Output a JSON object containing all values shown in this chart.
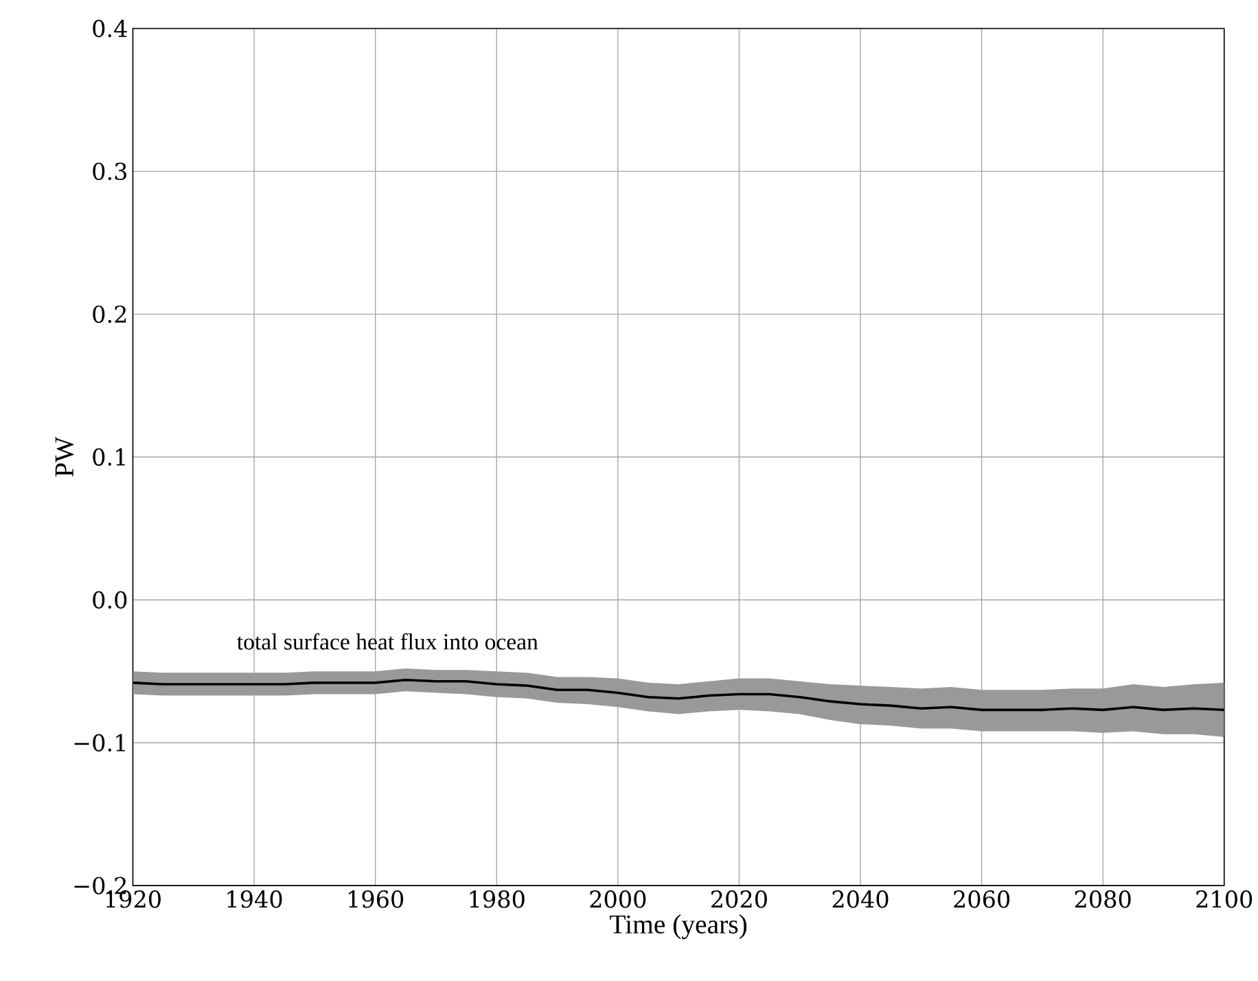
{
  "chart_data": {
    "type": "line",
    "xlabel": "Time (years)",
    "ylabel": "PW",
    "annotations": [
      "total surface heat flux into ocean"
    ],
    "x": [
      1920,
      1925,
      1930,
      1935,
      1940,
      1945,
      1950,
      1955,
      1960,
      1965,
      1970,
      1975,
      1980,
      1985,
      1990,
      1995,
      2000,
      2005,
      2010,
      2015,
      2020,
      2025,
      2030,
      2035,
      2040,
      2045,
      2050,
      2055,
      2060,
      2065,
      2070,
      2075,
      2080,
      2085,
      2090,
      2095,
      2100
    ],
    "series": [
      {
        "color": "#000000",
        "values": [
          -0.058,
          -0.059,
          -0.059,
          -0.059,
          -0.059,
          -0.059,
          -0.058,
          -0.058,
          -0.058,
          -0.056,
          -0.057,
          -0.057,
          -0.059,
          -0.06,
          -0.063,
          -0.063,
          -0.065,
          -0.068,
          -0.069,
          -0.067,
          -0.066,
          -0.066,
          -0.068,
          -0.071,
          -0.073,
          -0.074,
          -0.076,
          -0.075,
          -0.077,
          -0.077,
          -0.077,
          -0.076,
          -0.077,
          -0.075,
          -0.077,
          -0.076,
          -0.077
        ],
        "lower": [
          -0.066,
          -0.067,
          -0.067,
          -0.067,
          -0.067,
          -0.067,
          -0.066,
          -0.066,
          -0.066,
          -0.064,
          -0.065,
          -0.066,
          -0.068,
          -0.069,
          -0.072,
          -0.073,
          -0.075,
          -0.078,
          -0.08,
          -0.078,
          -0.077,
          -0.078,
          -0.08,
          -0.084,
          -0.087,
          -0.088,
          -0.09,
          -0.09,
          -0.092,
          -0.092,
          -0.092,
          -0.092,
          -0.093,
          -0.092,
          -0.094,
          -0.094,
          -0.096
        ],
        "upper": [
          -0.05,
          -0.051,
          -0.051,
          -0.051,
          -0.051,
          -0.051,
          -0.05,
          -0.05,
          -0.05,
          -0.048,
          -0.049,
          -0.049,
          -0.05,
          -0.051,
          -0.054,
          -0.054,
          -0.055,
          -0.058,
          -0.059,
          -0.057,
          -0.055,
          -0.055,
          -0.057,
          -0.059,
          -0.06,
          -0.061,
          -0.062,
          -0.061,
          -0.063,
          -0.063,
          -0.063,
          -0.062,
          -0.062,
          -0.059,
          -0.061,
          -0.059,
          -0.058
        ]
      }
    ],
    "xlim": [
      1920,
      2100
    ],
    "ylim": [
      -0.2,
      0.4
    ],
    "xticks": [
      1920,
      1940,
      1960,
      1980,
      2000,
      2020,
      2040,
      2060,
      2080,
      2100
    ],
    "yticks": [
      {
        "value": -0.2,
        "label": "−0.2"
      },
      {
        "value": -0.1,
        "label": "−0.1"
      },
      {
        "value": 0.0,
        "label": "0.0"
      },
      {
        "value": 0.1,
        "label": "0.1"
      },
      {
        "value": 0.2,
        "label": "0.2"
      },
      {
        "value": 0.3,
        "label": "0.3"
      },
      {
        "value": 0.4,
        "label": "0.4"
      }
    ],
    "grid": true,
    "marker": "none",
    "line_style": "solid"
  }
}
